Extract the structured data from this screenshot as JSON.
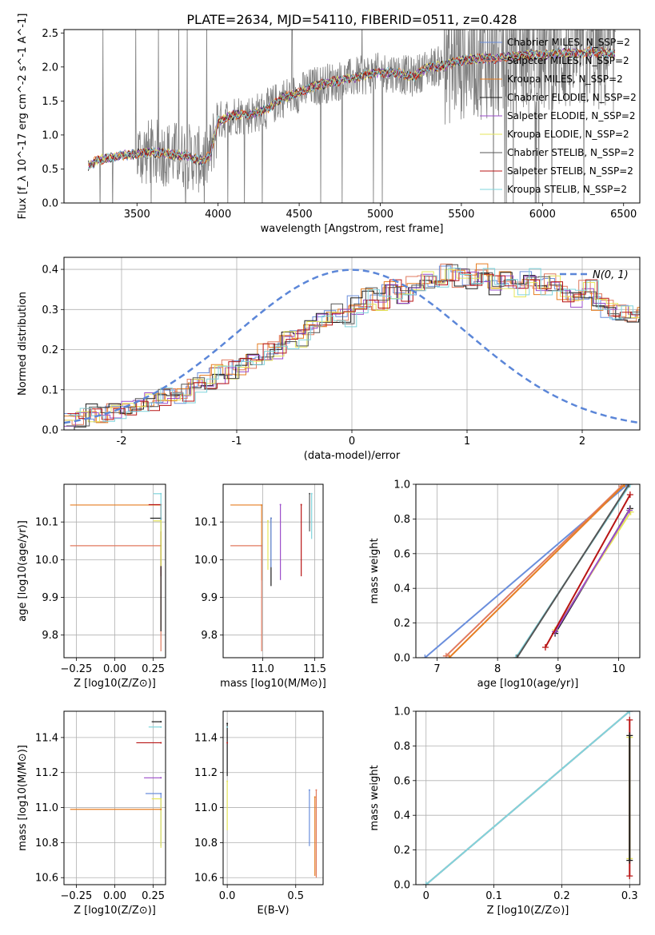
{
  "figure_title": "PLATE=2634, MJD=54110, FIBERID=0511, z=0.428",
  "colors": {
    "Chabrier MILES": "#6a8edc",
    "Salpeter MILES": "#e07a5f",
    "Kroupa MILES": "#e67e22",
    "Chabrier ELODIE": "#1a1a1a",
    "Salpeter ELODIE": "#9b4dca",
    "Kroupa ELODIE": "#e6e65a",
    "Chabrier STELIB": "#555555",
    "Salpeter STELIB": "#b81414",
    "Kroupa STELIB": "#7fd4dc",
    "data": "#808080",
    "normal": "#5b86d8"
  },
  "chart_data": [
    {
      "id": "spectrum",
      "type": "line",
      "title": "",
      "xlabel": "wavelength [Angstrom, rest frame]",
      "ylabel": "Flux [f_λ 10^-17 erg cm^-2 s^-1 A^-1]",
      "xlim": [
        3050,
        6600
      ],
      "ylim": [
        0,
        2.55
      ],
      "xticks": [
        3500,
        4000,
        4500,
        5000,
        5500,
        6000,
        6500
      ],
      "yticks": [
        0.0,
        0.5,
        1.0,
        1.5,
        2.0,
        2.5
      ],
      "grid": false,
      "legend_position": "right",
      "legend": [
        "Chabrier MILES, N_SSP=2",
        "Salpeter MILES, N_SSP=2",
        "Kroupa MILES, N_SSP=2",
        "Chabrier ELODIE, N_SSP=2",
        "Salpeter ELODIE, N_SSP=2",
        "Kroupa ELODIE, N_SSP=2",
        "Chabrier STELIB, N_SSP=2",
        "Salpeter STELIB, N_SSP=2",
        "Kroupa STELIB, N_SSP=2"
      ],
      "continuum": {
        "x": [
          3200,
          3250,
          3300,
          3400,
          3500,
          3600,
          3700,
          3800,
          3900,
          3950,
          4000,
          4100,
          4200,
          4300,
          4400,
          4500,
          4600,
          4700,
          4800,
          4900,
          5000,
          5100,
          5200,
          5300,
          5400,
          5500,
          5600,
          5700,
          5800,
          5900,
          6000,
          6100,
          6200,
          6300,
          6400
        ],
        "y": [
          0.55,
          0.62,
          0.65,
          0.7,
          0.72,
          0.75,
          0.72,
          0.7,
          0.62,
          0.7,
          1.2,
          1.3,
          1.3,
          1.38,
          1.55,
          1.62,
          1.72,
          1.78,
          1.82,
          1.88,
          1.92,
          1.92,
          1.85,
          2.0,
          2.02,
          2.1,
          2.12,
          2.12,
          2.15,
          2.18,
          2.18,
          2.2,
          2.2,
          2.22,
          2.2
        ]
      }
    },
    {
      "id": "residuals",
      "type": "line",
      "title": "",
      "xlabel": "(data-model)/error",
      "ylabel": "Normed distribution",
      "xlim": [
        -2.5,
        2.5
      ],
      "ylim": [
        0,
        0.43
      ],
      "xticks": [
        -2,
        -1,
        0,
        1,
        2
      ],
      "yticks": [
        0.0,
        0.1,
        0.2,
        0.3,
        0.4
      ],
      "grid": true,
      "legend_position": "upper right",
      "normal_label": "N(0, 1)",
      "bin_width": 0.1,
      "hist_x_start": -2.5,
      "hist_values": [
        0.02,
        0.03,
        0.04,
        0.04,
        0.05,
        0.05,
        0.06,
        0.07,
        0.08,
        0.09,
        0.09,
        0.11,
        0.12,
        0.14,
        0.15,
        0.16,
        0.17,
        0.19,
        0.2,
        0.22,
        0.23,
        0.25,
        0.27,
        0.29,
        0.28,
        0.31,
        0.33,
        0.32,
        0.35,
        0.34,
        0.36,
        0.37,
        0.38,
        0.39,
        0.38,
        0.37,
        0.39,
        0.36,
        0.37,
        0.35,
        0.38,
        0.36,
        0.37,
        0.34,
        0.33,
        0.35,
        0.32,
        0.3,
        0.29,
        0.27,
        0.29,
        0.26,
        0.24,
        0.22,
        0.2,
        0.18,
        0.16,
        0.15,
        0.13,
        0.14,
        0.12,
        0.12,
        0.11,
        0.12,
        0.1,
        0.09,
        0.1,
        0.08,
        0.09,
        0.07,
        0.05,
        0.05,
        0.04,
        0.04,
        0.03,
        0.03,
        0.03,
        0.02,
        0.02,
        0.02
      ]
    },
    {
      "id": "age-vs-Z",
      "type": "scatter",
      "xlabel": "Z [log10(Z/Z⊙)]",
      "ylabel": "age  [log10(age/yr)]",
      "xlim": [
        -0.33,
        0.33
      ],
      "ylim": [
        9.74,
        10.2
      ],
      "xticks": [
        -0.25,
        0.0,
        0.25
      ],
      "xtick_labels": [
        "−0.25",
        "0.00",
        "0.25"
      ],
      "yticks": [
        9.8,
        9.9,
        10.0,
        10.1
      ],
      "grid": true,
      "points": [
        {
          "series": "Kroupa MILES",
          "x": 0.3,
          "y": 10.145,
          "xerr": [
            0.59,
            0.0
          ],
          "yerr": [
            0.16,
            0.0
          ]
        },
        {
          "series": "Salpeter MILES",
          "x": 0.3,
          "y": 10.037,
          "xerr": [
            0.59,
            0.0
          ],
          "yerr": [
            0.28,
            0.0
          ]
        },
        {
          "series": "Salpeter STELIB",
          "x": 0.3,
          "y": 10.146,
          "xerr": [
            0.08,
            0.0
          ],
          "yerr": [
            0.19,
            0.0
          ]
        },
        {
          "series": "Chabrier ELODIE",
          "x": 0.3,
          "y": 10.11,
          "xerr": [
            0.07,
            0.0
          ],
          "yerr": [
            0.3,
            0.0
          ]
        },
        {
          "series": "Kroupa STELIB",
          "x": 0.3,
          "y": 10.175,
          "xerr": [
            0.05,
            0.0
          ],
          "yerr": [
            0.1,
            0.0
          ]
        },
        {
          "series": "Kroupa ELODIE",
          "x": 0.3,
          "y": 10.103,
          "xerr": [
            0.05,
            0.0
          ],
          "yerr": [
            0.12,
            0.0
          ]
        }
      ]
    },
    {
      "id": "age-vs-mass",
      "type": "scatter",
      "xlabel": "mass [log10(M/M⊙)]",
      "ylabel": "",
      "xlim": [
        10.62,
        11.58
      ],
      "ylim": [
        9.74,
        10.2
      ],
      "xticks": [
        11.0,
        11.5
      ],
      "xtick_labels": [
        "11.0",
        "11.5"
      ],
      "yticks": [
        9.8,
        9.9,
        10.0,
        10.1
      ],
      "grid": true,
      "points": [
        {
          "series": "Kroupa MILES",
          "x": 10.99,
          "y": 10.145,
          "xerr": [
            0.3,
            0.0
          ],
          "yerr": [
            0.2,
            0.0
          ]
        },
        {
          "series": "Salpeter MILES",
          "x": 10.99,
          "y": 10.037,
          "xerr": [
            0.3,
            0.0
          ],
          "yerr": [
            0.28,
            0.0
          ]
        },
        {
          "series": "Salpeter STELIB",
          "x": 11.37,
          "y": 10.146,
          "xerr": [
            0.0,
            0.0
          ],
          "yerr": [
            0.19,
            0.0
          ]
        },
        {
          "series": "Salpeter ELODIE",
          "x": 11.17,
          "y": 10.146,
          "xerr": [
            0.0,
            0.0
          ],
          "yerr": [
            0.2,
            0.0
          ]
        },
        {
          "series": "Chabrier ELODIE",
          "x": 11.08,
          "y": 10.11,
          "xerr": [
            0.0,
            0.0
          ],
          "yerr": [
            0.18,
            0.0
          ]
        },
        {
          "series": "Chabrier MILES",
          "x": 11.08,
          "y": 10.11,
          "xerr": [
            0.0,
            0.0
          ],
          "yerr": [
            0.13,
            0.0
          ]
        },
        {
          "series": "Kroupa STELIB",
          "x": 11.47,
          "y": 10.175,
          "xerr": [
            0.0,
            0.0
          ],
          "yerr": [
            0.12,
            0.0
          ]
        },
        {
          "series": "Chabrier STELIB",
          "x": 11.45,
          "y": 10.175,
          "xerr": [
            0.0,
            0.0
          ],
          "yerr": [
            0.1,
            0.0
          ]
        },
        {
          "series": "Kroupa ELODIE",
          "x": 11.05,
          "y": 10.103,
          "xerr": [
            0.0,
            0.0
          ],
          "yerr": [
            0.13,
            0.0
          ]
        }
      ]
    },
    {
      "id": "weight-vs-age",
      "type": "line",
      "xlabel": "age  [log10(age/yr)]",
      "ylabel": "mass weight",
      "xlim": [
        6.65,
        10.35
      ],
      "ylim": [
        0.0,
        1.0
      ],
      "xticks": [
        7,
        8,
        9,
        10
      ],
      "yticks": [
        0.0,
        0.2,
        0.4,
        0.6,
        0.8,
        1.0
      ],
      "grid": true,
      "series": [
        {
          "name": "Chabrier MILES",
          "x": [
            6.8,
            10.15
          ],
          "y": [
            0.0,
            1.0
          ]
        },
        {
          "name": "Salpeter MILES",
          "x": [
            7.15,
            10.05
          ],
          "y": [
            0.01,
            0.99
          ]
        },
        {
          "name": "Kroupa MILES",
          "x": [
            7.2,
            10.1
          ],
          "y": [
            0.0,
            1.0
          ]
        },
        {
          "name": "Chabrier ELODIE",
          "x": [
            8.95,
            10.19
          ],
          "y": [
            0.14,
            0.86
          ]
        },
        {
          "name": "Kroupa ELODIE",
          "x": [
            8.95,
            10.2
          ],
          "y": [
            0.16,
            0.84
          ]
        },
        {
          "name": "Salpeter ELODIE",
          "x": [
            8.95,
            10.18
          ],
          "y": [
            0.15,
            0.85
          ]
        },
        {
          "name": "Salpeter STELIB",
          "x": [
            8.79,
            10.19
          ],
          "y": [
            0.06,
            0.94
          ]
        },
        {
          "name": "Kroupa STELIB",
          "x": [
            8.3,
            10.19
          ],
          "y": [
            0.0,
            1.0
          ]
        },
        {
          "name": "Chabrier STELIB",
          "x": [
            8.32,
            10.17
          ],
          "y": [
            0.0,
            1.0
          ]
        }
      ]
    },
    {
      "id": "mass-vs-Z",
      "type": "scatter",
      "xlabel": "Z [log10(Z/Z⊙)]",
      "ylabel": "mass [log10(M/M⊙)]",
      "xlim": [
        -0.33,
        0.33
      ],
      "ylim": [
        10.56,
        11.55
      ],
      "xticks": [
        -0.25,
        0.0,
        0.25
      ],
      "xtick_labels": [
        "−0.25",
        "0.00",
        "0.25"
      ],
      "yticks": [
        10.6,
        10.8,
        11.0,
        11.2,
        11.4
      ],
      "grid": true,
      "points": [
        {
          "series": "Chabrier ELODIE",
          "x": 0.3,
          "y": 11.49,
          "xerr": [
            0.06,
            0.0
          ],
          "yerr": [
            0.0,
            0.0
          ]
        },
        {
          "series": "Kroupa STELIB",
          "x": 0.3,
          "y": 11.46,
          "xerr": [
            0.08,
            0.0
          ],
          "yerr": [
            0.0,
            0.0
          ]
        },
        {
          "series": "Salpeter STELIB",
          "x": 0.3,
          "y": 11.37,
          "xerr": [
            0.16,
            0.0
          ],
          "yerr": [
            0.0,
            0.0
          ]
        },
        {
          "series": "Salpeter ELODIE",
          "x": 0.3,
          "y": 11.17,
          "xerr": [
            0.11,
            0.0
          ],
          "yerr": [
            0.0,
            0.0
          ]
        },
        {
          "series": "Chabrier MILES",
          "x": 0.3,
          "y": 11.08,
          "xerr": [
            0.1,
            0.0
          ],
          "yerr": [
            0.3,
            0.0
          ]
        },
        {
          "series": "Kroupa ELODIE",
          "x": 0.3,
          "y": 11.05,
          "xerr": [
            0.06,
            0.0
          ],
          "yerr": [
            0.28,
            0.0
          ]
        },
        {
          "series": "Kroupa MILES",
          "x": 0.3,
          "y": 10.99,
          "xerr": [
            0.59,
            0.0
          ],
          "yerr": [
            0.0,
            0.0
          ]
        }
      ]
    },
    {
      "id": "mass-vs-EBV",
      "type": "scatter",
      "xlabel": "E(B-V)",
      "ylabel": "",
      "xlim": [
        -0.03,
        0.7
      ],
      "ylim": [
        10.56,
        11.55
      ],
      "xticks": [
        0.0,
        0.5
      ],
      "xtick_labels": [
        "0.0",
        "0.5"
      ],
      "yticks": [
        10.6,
        10.8,
        11.0,
        11.2,
        11.4
      ],
      "grid": true,
      "points": [
        {
          "series": "Chabrier ELODIE",
          "x": 0.0,
          "y": 11.48,
          "xerr": [
            0.0,
            0.0
          ],
          "yerr": [
            0.3,
            0.0
          ]
        },
        {
          "series": "Kroupa STELIB",
          "x": 0.0,
          "y": 11.46,
          "xerr": [
            0.0,
            0.0
          ],
          "yerr": [
            0.0,
            0.0
          ]
        },
        {
          "series": "Salpeter STELIB",
          "x": 0.0,
          "y": 11.37,
          "xerr": [
            0.0,
            0.0
          ],
          "yerr": [
            0.0,
            0.0
          ]
        },
        {
          "series": "Kroupa ELODIE",
          "x": 0.0,
          "y": 11.15,
          "xerr": [
            0.0,
            0.0
          ],
          "yerr": [
            0.28,
            0.0
          ]
        },
        {
          "series": "Chabrier MILES",
          "x": 0.6,
          "y": 11.1,
          "xerr": [
            0.0,
            0.0
          ],
          "yerr": [
            0.32,
            0.0
          ]
        },
        {
          "series": "Salpeter MILES",
          "x": 0.65,
          "y": 11.1,
          "xerr": [
            0.0,
            0.0
          ],
          "yerr": [
            0.5,
            0.0
          ]
        },
        {
          "series": "Kroupa MILES",
          "x": 0.64,
          "y": 11.06,
          "xerr": [
            0.0,
            0.0
          ],
          "yerr": [
            0.45,
            0.0
          ]
        }
      ]
    },
    {
      "id": "weight-vs-Z",
      "type": "line",
      "xlabel": "Z [log10(Z/Z⊙)]",
      "ylabel": "mass weight",
      "xlim": [
        -0.015,
        0.315
      ],
      "ylim": [
        0.0,
        1.0
      ],
      "xticks": [
        0.0,
        0.1,
        0.2,
        0.3
      ],
      "yticks": [
        0.0,
        0.2,
        0.4,
        0.6,
        0.8,
        1.0
      ],
      "grid": true,
      "series": [
        {
          "name": "Chabrier MILES",
          "x": [
            0.0,
            0.3
          ],
          "y": [
            0.0,
            1.0
          ]
        },
        {
          "name": "Salpeter MILES",
          "x": [
            0.0,
            0.3
          ],
          "y": [
            0.0,
            1.0
          ]
        },
        {
          "name": "Kroupa STELIB",
          "x": [
            0.0,
            0.3
          ],
          "y": [
            0.0,
            1.0
          ]
        },
        {
          "name": "Salpeter STELIB",
          "x": [
            0.3,
            0.3
          ],
          "y": [
            0.05,
            0.95
          ]
        },
        {
          "name": "Kroupa ELODIE",
          "x": [
            0.3,
            0.3
          ],
          "y": [
            0.15,
            0.85
          ]
        },
        {
          "name": "Chabrier ELODIE",
          "x": [
            0.3,
            0.3
          ],
          "y": [
            0.14,
            0.86
          ]
        }
      ]
    }
  ]
}
